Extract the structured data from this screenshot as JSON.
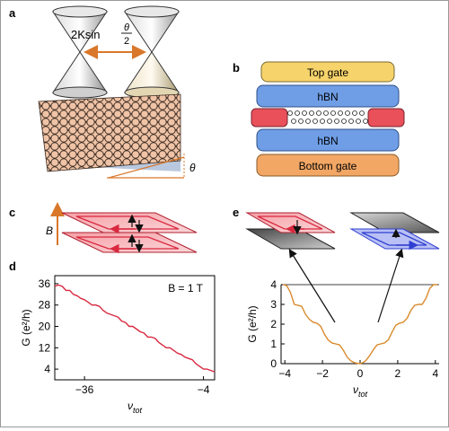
{
  "panels": {
    "a": {
      "label": "a",
      "separation_prefix": "2Ksin",
      "theta_num": "θ",
      "theta_den": "2",
      "angle_symbol": "θ"
    },
    "b": {
      "label": "b",
      "top_gate": "Top gate",
      "hbn_top": "hBN",
      "hbn_bottom": "hBN",
      "bottom_gate": "Bottom gate"
    },
    "c": {
      "label": "c",
      "b_field": "B"
    },
    "d": {
      "label": "d",
      "field_note": "B = 1 T"
    },
    "e": {
      "label": "e"
    }
  },
  "colors": {
    "top_gate": "#f6d36b",
    "hbn": "#6f9ee6",
    "bottom_gate": "#f3a765",
    "contact": "#e9505a",
    "trace_d": "#d9283f",
    "trace_e": "#d98a2c",
    "arrow": "#d9772a"
  },
  "chart_data": [
    {
      "panel": "d",
      "type": "line",
      "ylabel": "G (e²/h)",
      "xlabel": "ν_tot",
      "xticks": [
        "-36",
        "-4"
      ],
      "yticks": [
        "4",
        "12",
        "20",
        "28",
        "36"
      ],
      "xlim": [
        -44,
        -1
      ],
      "ylim": [
        0,
        39
      ],
      "annotation": "B = 1 T",
      "series": [
        {
          "x": [
            -44,
            -43,
            -42,
            -41,
            -40,
            -39,
            -38,
            -37,
            -36,
            -35,
            -34,
            -33,
            -32,
            -31,
            -30,
            -29,
            -28,
            -27,
            -26,
            -25,
            -24,
            -23,
            -22,
            -21,
            -20,
            -19,
            -18,
            -17,
            -16,
            -15,
            -14,
            -13,
            -12,
            -11,
            -10,
            -9,
            -8,
            -7,
            -6,
            -5,
            -4,
            -3,
            -2,
            -1
          ],
          "y": [
            35,
            35.5,
            35,
            33.5,
            33.5,
            32,
            31.5,
            30.5,
            30,
            29,
            28,
            28,
            27.5,
            26,
            25,
            24.5,
            24,
            23.5,
            22,
            21.5,
            20,
            20,
            19,
            18,
            17.5,
            16,
            16,
            15.5,
            14,
            13,
            12,
            12,
            11,
            10,
            9.5,
            8.5,
            8,
            7.5,
            6,
            5,
            4,
            4,
            3.5,
            3
          ]
        }
      ]
    },
    {
      "panel": "e",
      "type": "line",
      "ylabel": "G (e²/h)",
      "xlabel": "ν_tot",
      "xticks": [
        "-4",
        "-2",
        "0",
        "2",
        "4"
      ],
      "yticks": [
        "0",
        "1",
        "2",
        "3",
        "4"
      ],
      "xlim": [
        -4.2,
        4.2
      ],
      "ylim": [
        0,
        4
      ],
      "series": [
        {
          "x": [
            -4.1,
            -3.9,
            -3.7,
            -3.5,
            -3.3,
            -3.1,
            -2.9,
            -2.7,
            -2.5,
            -2.3,
            -2.1,
            -1.9,
            -1.7,
            -1.5,
            -1.3,
            -1.1,
            -0.9,
            -0.7,
            -0.5,
            -0.3,
            -0.15,
            0,
            0.15,
            0.3,
            0.5,
            0.7,
            0.9,
            1.1,
            1.3,
            1.5,
            1.7,
            1.9,
            2.1,
            2.3,
            2.5,
            2.7,
            2.9,
            3.1,
            3.3,
            3.5,
            3.7,
            3.9,
            4.1
          ],
          "y": [
            4.0,
            3.95,
            3.6,
            3.0,
            2.95,
            2.9,
            2.5,
            2.25,
            2.1,
            2.05,
            1.9,
            1.5,
            1.2,
            1.05,
            1.0,
            0.95,
            0.7,
            0.35,
            0.15,
            0.05,
            0.02,
            0.0,
            0.05,
            0.15,
            0.4,
            0.7,
            0.95,
            1.0,
            1.05,
            1.2,
            1.6,
            1.95,
            2.05,
            2.1,
            2.3,
            2.7,
            2.95,
            3.0,
            3.0,
            3.3,
            3.8,
            4.0,
            4.0
          ]
        }
      ]
    }
  ]
}
